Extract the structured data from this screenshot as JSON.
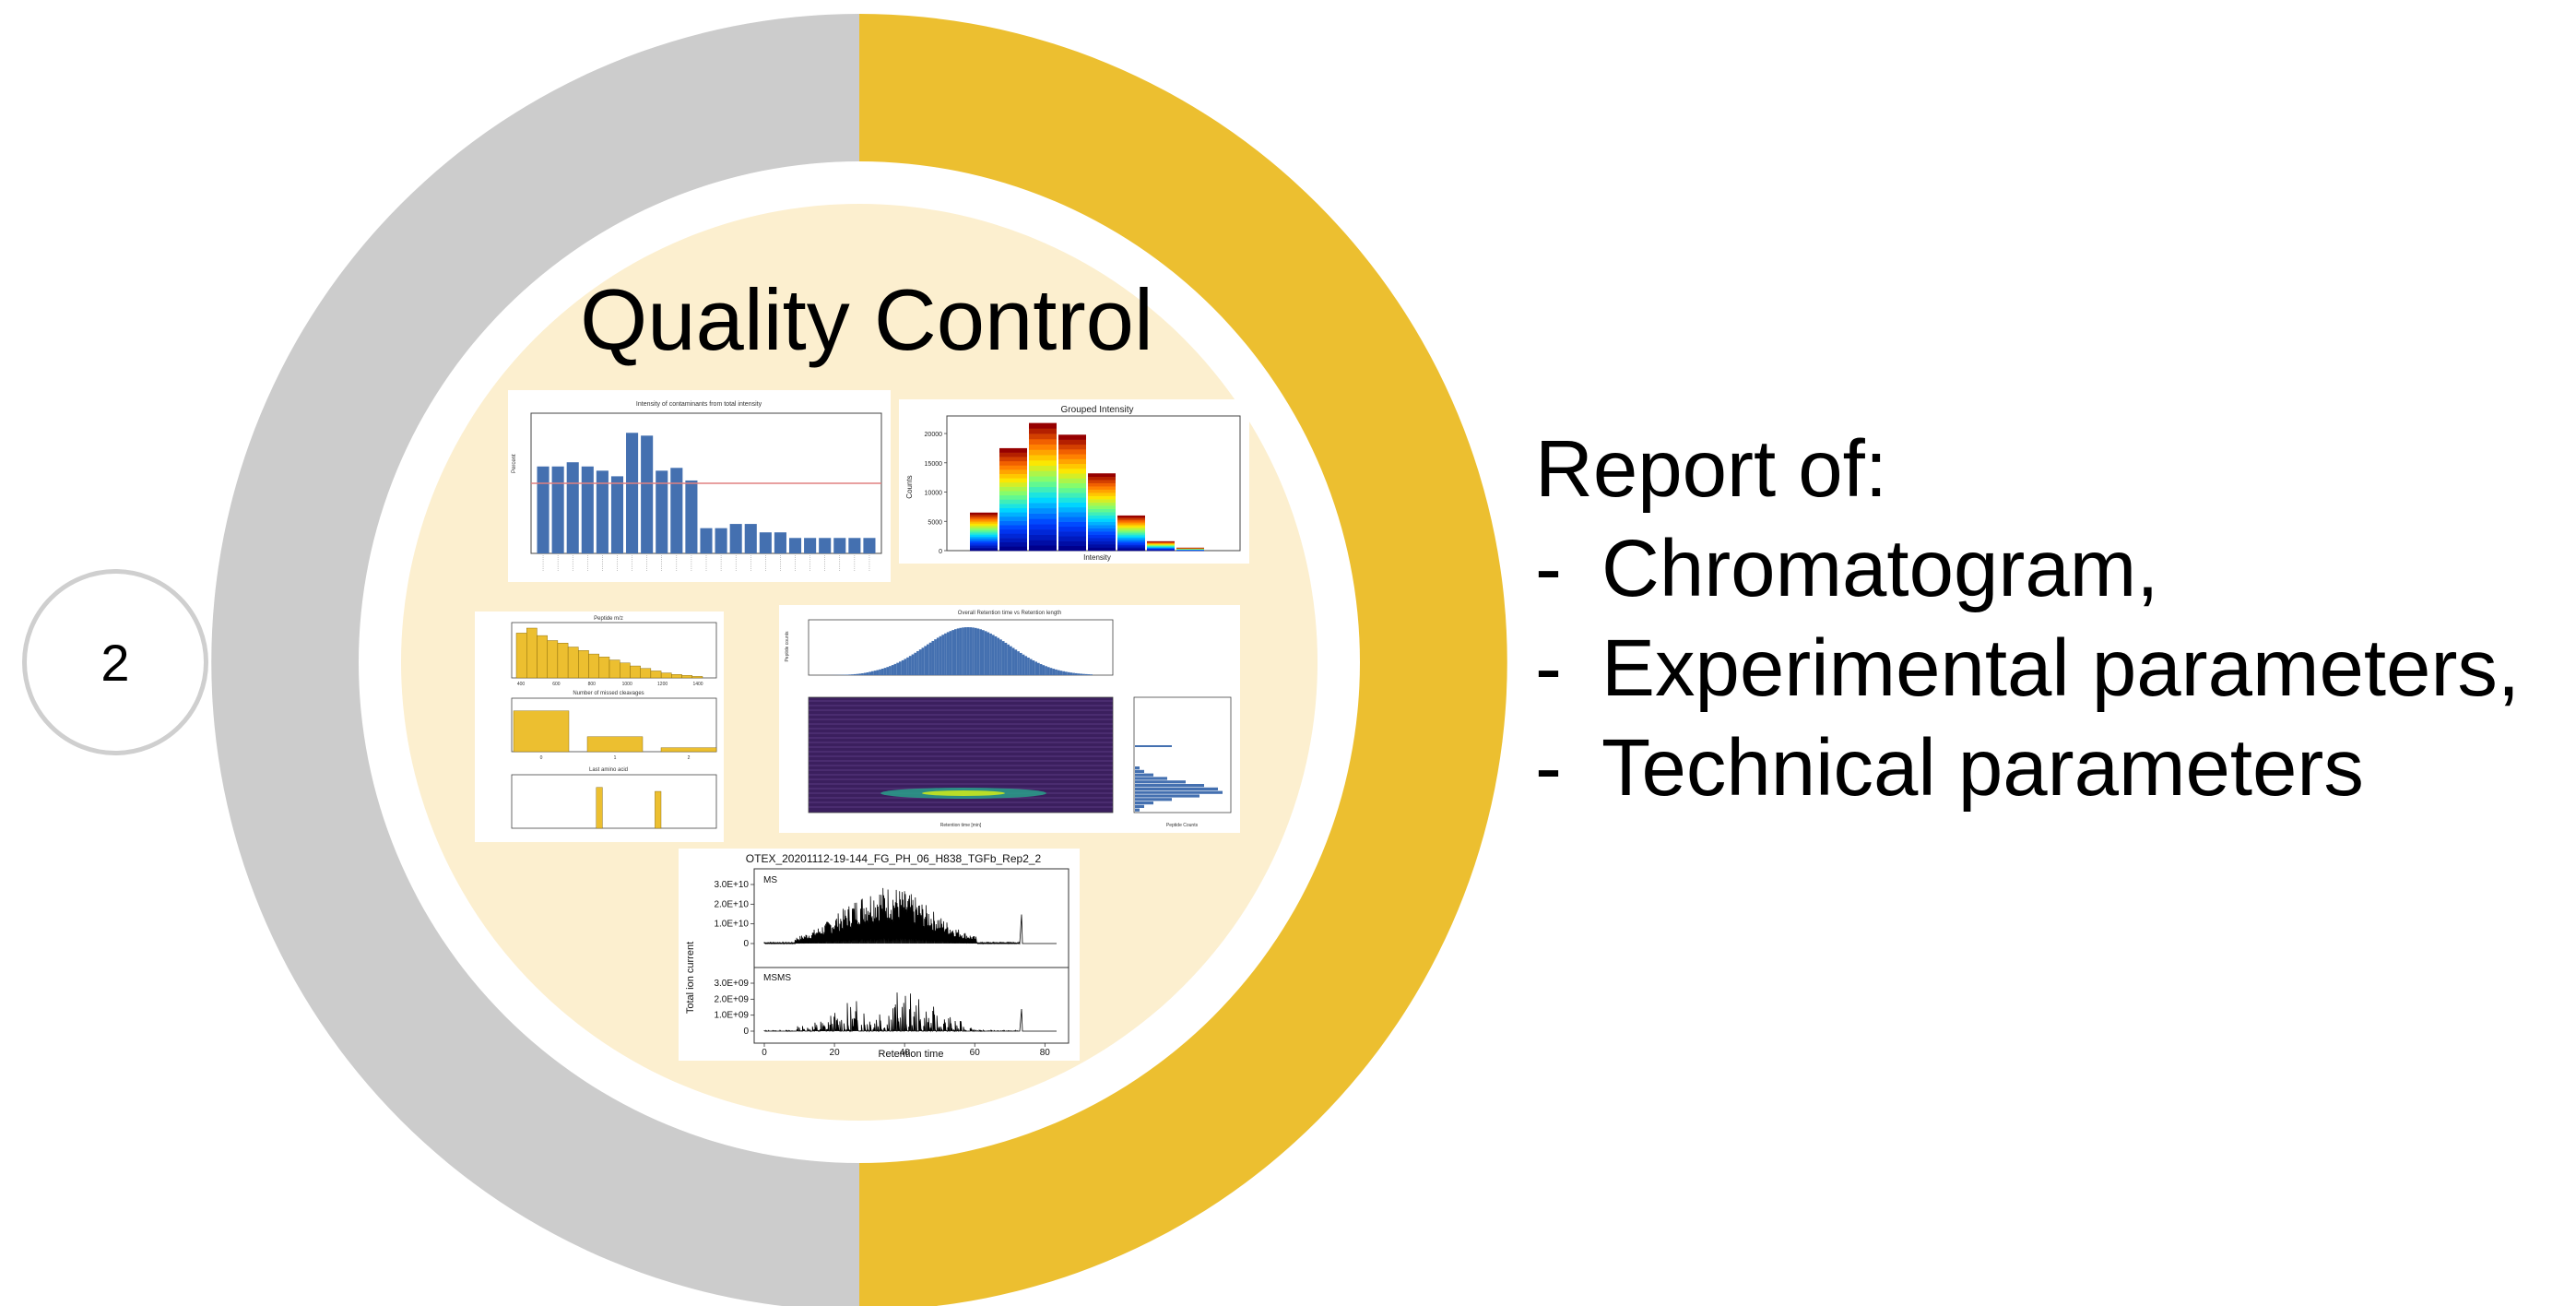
{
  "step_number": "2",
  "center_title": "Quality Control",
  "report": {
    "heading": "Report of:",
    "items": [
      {
        "dash": "-",
        "label": "Chromatogram,"
      },
      {
        "dash": "-",
        "label": "Experimental parameters,"
      },
      {
        "dash": "-",
        "label": "Technical parameters"
      }
    ]
  },
  "colors": {
    "ring_left": "#cccccc",
    "ring_right": "#ecbf30",
    "inner_disc": "#fcefcf",
    "bar_blue": "#4470b0",
    "bar_yellow": "#ecbf30"
  },
  "thumbnails": {
    "contaminants": {
      "title": "Intensity of contaminants from total intensity",
      "ylabel": "Percent",
      "values": [
        6.2,
        6.2,
        6.5,
        6.2,
        5.9,
        5.5,
        8.6,
        8.4,
        5.9,
        6.1,
        5.2,
        1.8,
        1.8,
        2.1,
        2.1,
        1.5,
        1.5,
        1.1,
        1.1,
        1.1,
        1.1,
        1.1,
        1.1
      ],
      "threshold": 5
    },
    "grouped_intensity": {
      "title": "Grouped Intensity",
      "xlabel": "Intensity",
      "ylabel": "Counts",
      "yticks": [
        "0",
        "5000",
        "10000",
        "15000",
        "20000"
      ],
      "values": [
        6500,
        17500,
        21800,
        19800,
        13200,
        6000,
        1600,
        500
      ]
    },
    "peptide_qc": {
      "size_title": "Peptide m/z",
      "cleavage_title": "Number of missed cleavages",
      "amino_title": "Last amino acid",
      "size_values": [
        0.9,
        1.0,
        0.85,
        0.75,
        0.7,
        0.62,
        0.55,
        0.48,
        0.42,
        0.36,
        0.3,
        0.24,
        0.19,
        0.14,
        0.1,
        0.07,
        0.05,
        0.03
      ],
      "size_xticks": [
        "400",
        "600",
        "800",
        "1000",
        "1200",
        "1400"
      ],
      "cleavage_values": [
        0.82,
        0.3,
        0.08
      ],
      "cleavage_xticks": [
        "0",
        "1",
        "2"
      ],
      "amino_values": [
        0,
        0,
        0,
        0,
        0,
        0,
        0,
        0,
        0.82,
        0,
        0,
        0,
        0,
        0,
        0.74,
        0,
        0,
        0,
        0,
        0
      ]
    },
    "retention": {
      "title": "Overall Retention time vs Retention length",
      "ylabel_top": "Peptide counts",
      "xlabel_main": "Retention time [min]",
      "xlabel_side": "Peptide Counts"
    },
    "chromatogram": {
      "title": "OTEX_20201112-19-144_FG_PH_06_H838_TGFb_Rep2_2",
      "ms_label": "MS",
      "msms_label": "MSMS",
      "ms_yticks": [
        "0",
        "1.0E+10",
        "2.0E+10",
        "3.0E+10"
      ],
      "msms_yticks": [
        "0",
        "1.0E+09",
        "2.0E+09",
        "3.0E+09"
      ],
      "xticks": [
        "0",
        "20",
        "40",
        "60",
        "80"
      ],
      "ylabel": "Total ion current",
      "xlabel": "Retention time"
    }
  }
}
